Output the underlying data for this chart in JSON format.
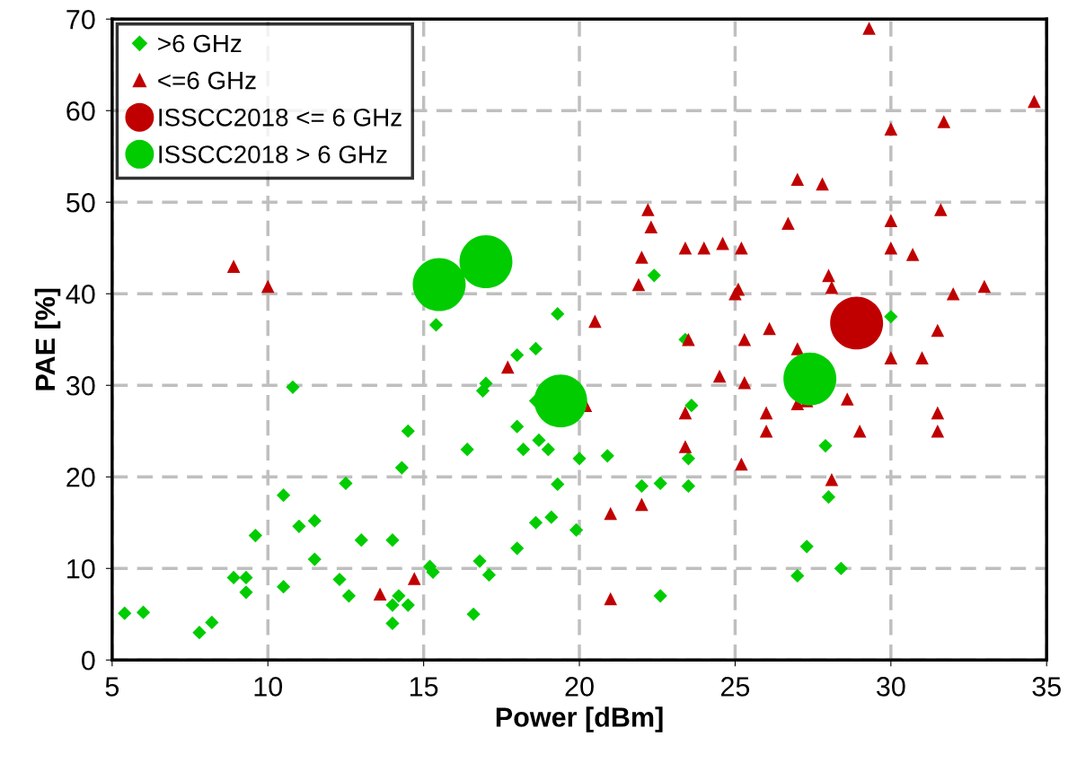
{
  "chart_data": {
    "type": "scatter",
    "xlabel": "Power [dBm]",
    "ylabel": "PAE [%]",
    "xlim": [
      5,
      35
    ],
    "xticks": [
      5,
      10,
      15,
      20,
      25,
      30,
      35
    ],
    "ylim": [
      0,
      70
    ],
    "yticks": [
      0,
      10,
      20,
      30,
      40,
      50,
      60,
      70
    ],
    "grid": true,
    "legend": "top left",
    "series": [
      {
        "name": ">6 GHz",
        "color": "#00cc00",
        "marker": "diamond",
        "x": [
          5.4,
          6,
          7.8,
          8.2,
          8.9,
          9.3,
          9.3,
          9.6,
          10.5,
          10.5,
          10.8,
          11,
          11.5,
          11.5,
          12.3,
          12.5,
          12.6,
          13,
          14,
          14,
          14,
          14.2,
          14.3,
          14.5,
          14.5,
          15.2,
          15.3,
          15.4,
          16.4,
          16.6,
          16.8,
          16.9,
          17,
          17.1,
          18,
          18,
          18,
          18.2,
          18.6,
          18.6,
          18.6,
          18.7,
          19,
          19.1,
          19.3,
          19.3,
          19.9,
          20,
          20.9,
          22,
          22.4,
          22.6,
          22.6,
          23.4,
          23.5,
          23.5,
          23.6,
          27,
          27.3,
          27.9,
          28,
          28.4,
          30
        ],
        "values": [
          5.1,
          5.2,
          3,
          4.1,
          9,
          7.4,
          9,
          13.6,
          8,
          18,
          29.8,
          14.6,
          15.2,
          11,
          8.8,
          19.3,
          7,
          13.1,
          13.1,
          6,
          4,
          7,
          21,
          25,
          6,
          10.2,
          9.6,
          36.6,
          23,
          5,
          10.8,
          29.4,
          30.2,
          9.3,
          12.2,
          25.5,
          33.3,
          23,
          34,
          28.3,
          15,
          24,
          23,
          15.6,
          19.2,
          37.8,
          14.2,
          22,
          22.3,
          19,
          42,
          19.3,
          7,
          35,
          22,
          19,
          27.8,
          9.2,
          12.4,
          23.4,
          17.8,
          10,
          37.5
        ]
      },
      {
        "name": "<=6 GHz",
        "color": "#c00000",
        "marker": "triangle",
        "x": [
          8.9,
          10,
          13.6,
          14.7,
          17.7,
          20.2,
          20.5,
          21,
          21,
          22,
          21.9,
          22.2,
          22.3,
          22,
          23.4,
          23.4,
          23.4,
          23.5,
          24,
          24.5,
          24.6,
          25,
          25.1,
          25.2,
          25.2,
          25.3,
          25.3,
          26,
          26,
          26.1,
          26.7,
          27,
          27,
          27,
          27.3,
          27.8,
          28,
          28.1,
          28.1,
          28.6,
          29,
          29.3,
          30,
          30,
          30,
          30,
          30.7,
          31,
          31.5,
          31.5,
          31.5,
          31.6,
          31.7,
          32,
          33,
          34.6
        ],
        "values": [
          43,
          40.8,
          7.2,
          8.9,
          32,
          27.8,
          37,
          16,
          6.7,
          44,
          41,
          49.2,
          47.3,
          17,
          45,
          27,
          23.3,
          35,
          45,
          31,
          45.5,
          40,
          40.5,
          45,
          21.4,
          35,
          30.3,
          27,
          25,
          36.2,
          47.7,
          52.5,
          34,
          28,
          28.3,
          52,
          42,
          40.7,
          19.7,
          28.5,
          25,
          69,
          58,
          48,
          45,
          33,
          44.3,
          33,
          36,
          27,
          25,
          49.2,
          58.8,
          40,
          40.8,
          61
        ]
      },
      {
        "name": "ISSCC2018 <= 6 GHz",
        "color": "#c00000",
        "marker": "circle",
        "x": [
          28.9
        ],
        "values": [
          36.8
        ]
      },
      {
        "name": "ISSCC2018 > 6 GHz",
        "color": "#00cc00",
        "marker": "circle",
        "x": [
          15.5,
          17,
          19.4,
          27.4
        ],
        "values": [
          41,
          43.5,
          28.3,
          30.7
        ]
      }
    ]
  }
}
